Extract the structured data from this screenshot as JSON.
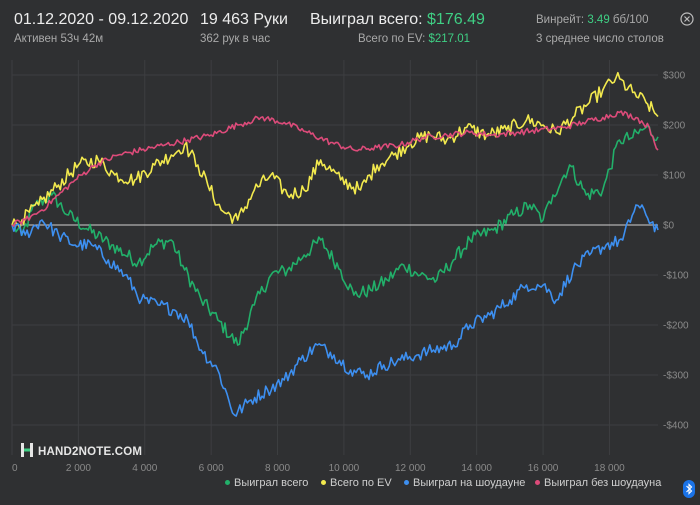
{
  "header": {
    "date_range": "01.12.2020 - 09.12.2020",
    "active": "Активен 53ч 42м",
    "hands": "19 463 Руки",
    "hands_per_hour": "362 рук в час",
    "won_total_label": "Выиграл всего:",
    "won_total_value": "$176.49",
    "ev_label": "Всего по EV:",
    "ev_value": "$217.01",
    "winrate_label": "Винрейт:",
    "winrate_value": "3.49",
    "winrate_unit": "бб/100",
    "avg_tables": "3 среднее число столов"
  },
  "logo_text": "HAND2NOTE.COM",
  "colors": {
    "background": "#2f3032",
    "grid": "#3d3e41",
    "won": "#22b06a",
    "ev": "#f2e94e",
    "showdown": "#3d8ff0",
    "non_showdown": "#dd4b7a",
    "accent_green": "#3fcf84"
  },
  "chart_data": {
    "type": "line",
    "x_ticks": [
      0,
      2000,
      4000,
      6000,
      8000,
      10000,
      12000,
      14000,
      16000,
      18000
    ],
    "x_tick_labels": [
      "0",
      "2 000",
      "4 000",
      "6 000",
      "8 000",
      "10 000",
      "12 000",
      "14 000",
      "16 000",
      "18 000"
    ],
    "xlim": [
      0,
      19463
    ],
    "y_ticks": [
      300,
      200,
      100,
      0,
      -100,
      -200,
      -300,
      -400
    ],
    "y_tick_labels": [
      "$300",
      "$200",
      "$100",
      "$0",
      "-$100",
      "-$200",
      "-$300",
      "-$400"
    ],
    "ylim": [
      -460,
      330
    ],
    "legend_position": "bottom-right",
    "series": [
      {
        "name": "Выиграл всего",
        "color_key": "won",
        "points": [
          [
            0,
            0
          ],
          [
            300,
            -20
          ],
          [
            700,
            40
          ],
          [
            1200,
            60
          ],
          [
            1700,
            20
          ],
          [
            2300,
            -10
          ],
          [
            3000,
            -40
          ],
          [
            3800,
            -75
          ],
          [
            4300,
            -40
          ],
          [
            4800,
            -30
          ],
          [
            5200,
            -90
          ],
          [
            5700,
            -150
          ],
          [
            6200,
            -190
          ],
          [
            6800,
            -240
          ],
          [
            7300,
            -160
          ],
          [
            7800,
            -100
          ],
          [
            8300,
            -90
          ],
          [
            8800,
            -60
          ],
          [
            9300,
            -30
          ],
          [
            9900,
            -90
          ],
          [
            10300,
            -140
          ],
          [
            10800,
            -130
          ],
          [
            11300,
            -110
          ],
          [
            11800,
            -80
          ],
          [
            12300,
            -100
          ],
          [
            12800,
            -110
          ],
          [
            13300,
            -70
          ],
          [
            13800,
            -30
          ],
          [
            14500,
            -10
          ],
          [
            15100,
            20
          ],
          [
            15600,
            40
          ],
          [
            16000,
            10
          ],
          [
            16300,
            60
          ],
          [
            16800,
            120
          ],
          [
            17300,
            60
          ],
          [
            17800,
            70
          ],
          [
            18300,
            170
          ],
          [
            18700,
            175
          ],
          [
            19100,
            195
          ],
          [
            19463,
            176.49
          ]
        ]
      },
      {
        "name": "Всего по EV",
        "color_key": "ev",
        "points": [
          [
            0,
            0
          ],
          [
            300,
            10
          ],
          [
            800,
            40
          ],
          [
            1400,
            80
          ],
          [
            2000,
            120
          ],
          [
            2600,
            130
          ],
          [
            3100,
            100
          ],
          [
            3700,
            90
          ],
          [
            4300,
            120
          ],
          [
            4800,
            140
          ],
          [
            5200,
            160
          ],
          [
            5600,
            120
          ],
          [
            5900,
            80
          ],
          [
            6300,
            30
          ],
          [
            6800,
            10
          ],
          [
            7300,
            70
          ],
          [
            7800,
            100
          ],
          [
            8300,
            60
          ],
          [
            8800,
            70
          ],
          [
            9300,
            130
          ],
          [
            9900,
            90
          ],
          [
            10500,
            70
          ],
          [
            11000,
            120
          ],
          [
            11500,
            140
          ],
          [
            12000,
            165
          ],
          [
            12600,
            180
          ],
          [
            13100,
            170
          ],
          [
            13700,
            195
          ],
          [
            14300,
            180
          ],
          [
            14900,
            190
          ],
          [
            15500,
            210
          ],
          [
            16000,
            200
          ],
          [
            16400,
            185
          ],
          [
            16900,
            215
          ],
          [
            17400,
            245
          ],
          [
            17800,
            270
          ],
          [
            18200,
            295
          ],
          [
            18700,
            265
          ],
          [
            19100,
            245
          ],
          [
            19463,
            217.01
          ]
        ]
      },
      {
        "name": "Выиграл на шоудауне",
        "color_key": "showdown",
        "points": [
          [
            0,
            0
          ],
          [
            400,
            -20
          ],
          [
            900,
            10
          ],
          [
            1400,
            -20
          ],
          [
            1900,
            -40
          ],
          [
            2400,
            -40
          ],
          [
            2900,
            -70
          ],
          [
            3400,
            -100
          ],
          [
            3900,
            -150
          ],
          [
            4400,
            -160
          ],
          [
            4900,
            -170
          ],
          [
            5300,
            -190
          ],
          [
            5700,
            -250
          ],
          [
            6200,
            -290
          ],
          [
            6700,
            -380
          ],
          [
            7200,
            -350
          ],
          [
            7700,
            -330
          ],
          [
            8200,
            -310
          ],
          [
            8700,
            -270
          ],
          [
            9200,
            -240
          ],
          [
            9700,
            -260
          ],
          [
            10200,
            -290
          ],
          [
            10700,
            -300
          ],
          [
            11200,
            -280
          ],
          [
            11700,
            -270
          ],
          [
            12200,
            -260
          ],
          [
            12700,
            -250
          ],
          [
            13300,
            -240
          ],
          [
            13800,
            -200
          ],
          [
            14400,
            -180
          ],
          [
            15000,
            -150
          ],
          [
            15500,
            -120
          ],
          [
            16000,
            -120
          ],
          [
            16400,
            -150
          ],
          [
            16900,
            -90
          ],
          [
            17400,
            -60
          ],
          [
            17900,
            -40
          ],
          [
            18400,
            -30
          ],
          [
            18800,
            40
          ],
          [
            19100,
            20
          ],
          [
            19463,
            -10
          ]
        ]
      },
      {
        "name": "Выиграл без шоудауна",
        "color_key": "non_showdown",
        "points": [
          [
            0,
            0
          ],
          [
            400,
            10
          ],
          [
            900,
            30
          ],
          [
            1400,
            60
          ],
          [
            1900,
            90
          ],
          [
            2500,
            120
          ],
          [
            3200,
            140
          ],
          [
            3900,
            150
          ],
          [
            4600,
            160
          ],
          [
            5300,
            170
          ],
          [
            6000,
            180
          ],
          [
            6800,
            200
          ],
          [
            7500,
            215
          ],
          [
            8200,
            205
          ],
          [
            8900,
            185
          ],
          [
            9600,
            165
          ],
          [
            10300,
            150
          ],
          [
            11000,
            155
          ],
          [
            11700,
            160
          ],
          [
            12400,
            175
          ],
          [
            13100,
            180
          ],
          [
            13800,
            185
          ],
          [
            14500,
            180
          ],
          [
            15200,
            185
          ],
          [
            15900,
            190
          ],
          [
            16600,
            195
          ],
          [
            17200,
            205
          ],
          [
            17800,
            215
          ],
          [
            18300,
            225
          ],
          [
            18800,
            215
          ],
          [
            19200,
            195
          ],
          [
            19463,
            150
          ]
        ]
      }
    ]
  }
}
